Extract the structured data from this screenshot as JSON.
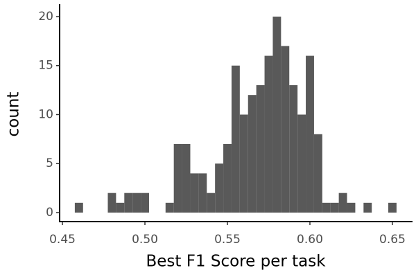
{
  "chart_data": {
    "type": "histogram",
    "x_label": "Best F1 Score per task",
    "y_label": "count",
    "bins": [
      0.4575,
      0.4625,
      0.4675,
      0.4725,
      0.4775,
      0.4825,
      0.4875,
      0.4925,
      0.4975,
      0.5025,
      0.5075,
      0.5125,
      0.5175,
      0.5225,
      0.5275,
      0.5325,
      0.5375,
      0.5425,
      0.5475,
      0.5525,
      0.5575,
      0.5625,
      0.5675,
      0.5725,
      0.5775,
      0.5825,
      0.5875,
      0.5925,
      0.5975,
      0.6025,
      0.6075,
      0.6125,
      0.6175,
      0.6225,
      0.6275,
      0.6325,
      0.6375,
      0.6425,
      0.6475,
      0.6525
    ],
    "counts": [
      1,
      0,
      0,
      0,
      2,
      1,
      2,
      2,
      2,
      0,
      0,
      1,
      7,
      7,
      4,
      4,
      2,
      5,
      7,
      15,
      10,
      12,
      13,
      16,
      20,
      17,
      13,
      10,
      16,
      8,
      1,
      1,
      2,
      1,
      0,
      1,
      0,
      0,
      1
    ],
    "color": "#595959",
    "xlim": [
      0.4483,
      0.6622
    ],
    "ylim": [
      -0.92,
      21.27
    ],
    "xticks": [
      0.45,
      {
        "value": 0.5,
        "label": "0.50"
      },
      0.55,
      {
        "value": 0.6,
        "label": "0.60"
      },
      0.65
    ],
    "yticks": [
      0,
      5,
      10,
      15,
      20
    ]
  }
}
